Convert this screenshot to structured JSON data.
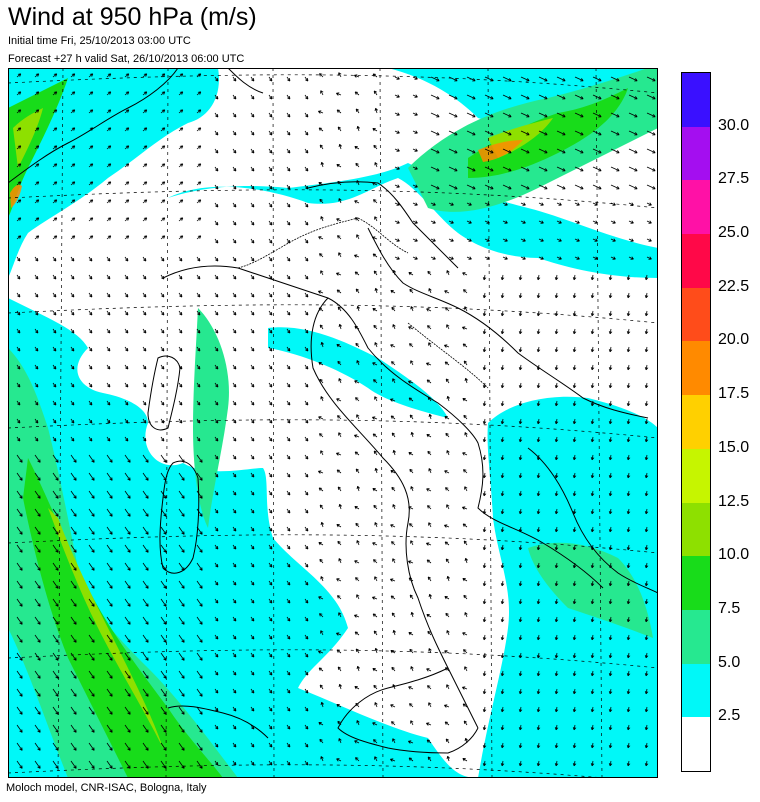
{
  "header": {
    "title": "Wind at 950 hPa (m/s)",
    "initial_time": "Initial time  Fri, 25/10/2013 03:00 UTC",
    "forecast": "Forecast +27 h valid  Sat, 26/10/2013 06:00 UTC"
  },
  "footer": {
    "credit": "Moloch model, CNR-ISAC, Bologna, Italy"
  },
  "legend": {
    "labels": [
      "30.0",
      "27.5",
      "25.0",
      "22.5",
      "20.0",
      "17.5",
      "15.0",
      "12.5",
      "10.0",
      "7.5",
      "5.0",
      "2.5"
    ],
    "colors": [
      "#3a10ff",
      "#a40ef0",
      "#ff11a6",
      "#ff0848",
      "#ff4c1a",
      "#ff8a00",
      "#ffd000",
      "#c6f500",
      "#8ee000",
      "#18dc1a",
      "#26e890",
      "#00f8f8",
      "#ffffff"
    ]
  },
  "map": {
    "colors": {
      "calm": "#ffffff",
      "light": "#00f8f8",
      "moderate": "#26e890",
      "fresh": "#18dc1a",
      "strong": "#8ee000",
      "gale": "#ff8a00"
    }
  }
}
